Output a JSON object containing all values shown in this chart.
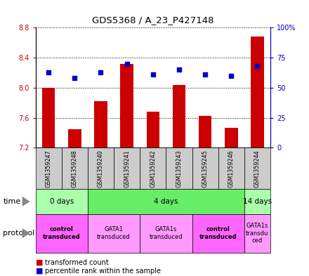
{
  "title": "GDS5368 / A_23_P427148",
  "samples": [
    "GSM1359247",
    "GSM1359248",
    "GSM1359240",
    "GSM1359241",
    "GSM1359242",
    "GSM1359243",
    "GSM1359245",
    "GSM1359246",
    "GSM1359244"
  ],
  "bar_values": [
    8.0,
    7.45,
    7.82,
    8.32,
    7.68,
    8.04,
    7.62,
    7.46,
    8.68
  ],
  "dot_values": [
    63,
    58,
    63,
    70,
    61,
    65,
    61,
    60,
    68
  ],
  "ymin": 7.2,
  "ymax": 8.8,
  "y2min": 0,
  "y2max": 100,
  "yticks": [
    7.2,
    7.6,
    8.0,
    8.4,
    8.8
  ],
  "y2ticks": [
    0,
    25,
    50,
    75,
    100
  ],
  "y2tick_labels": [
    "0",
    "25",
    "50",
    "75",
    "100%"
  ],
  "bar_color": "#cc0000",
  "dot_color": "#0000cc",
  "bar_baseline": 7.2,
  "time_groups": [
    {
      "label": "0 days",
      "start": 0,
      "end": 2,
      "color": "#aaffaa"
    },
    {
      "label": "4 days",
      "start": 2,
      "end": 8,
      "color": "#66ee66"
    },
    {
      "label": "14 days",
      "start": 8,
      "end": 9,
      "color": "#aaffaa"
    }
  ],
  "protocol_groups": [
    {
      "label": "control\ntransduced",
      "start": 0,
      "end": 2,
      "color": "#ff66ff",
      "bold": true
    },
    {
      "label": "GATA1\ntransduced",
      "start": 2,
      "end": 4,
      "color": "#ff99ff",
      "bold": false
    },
    {
      "label": "GATA1s\ntransduced",
      "start": 4,
      "end": 6,
      "color": "#ff99ff",
      "bold": false
    },
    {
      "label": "control\ntransduced",
      "start": 6,
      "end": 8,
      "color": "#ff66ff",
      "bold": true
    },
    {
      "label": "GATA1s\ntransdu\nced",
      "start": 8,
      "end": 9,
      "color": "#ff99ff",
      "bold": false
    }
  ],
  "sample_bg": "#cccccc",
  "legend_items": [
    {
      "color": "#cc0000",
      "label": "transformed count"
    },
    {
      "color": "#0000cc",
      "label": "percentile rank within the sample"
    }
  ]
}
